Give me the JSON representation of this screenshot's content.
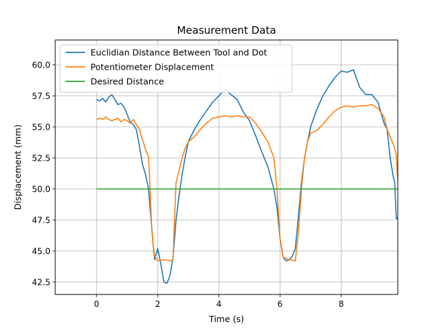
{
  "chart_data": {
    "type": "line",
    "title": "Measurement Data",
    "xlabel": "Time (s)",
    "ylabel": "Displacement (mm)",
    "xlim": [
      -1.35,
      9.85
    ],
    "ylim": [
      41.5,
      62.0
    ],
    "xticks": [
      0,
      2,
      4,
      6,
      8
    ],
    "yticks": [
      42.5,
      45.0,
      47.5,
      50.0,
      52.5,
      55.0,
      57.5,
      60.0
    ],
    "grid": true,
    "legend": "upper-left",
    "series": [
      {
        "name": "Euclidian Distance Between Tool and Dot",
        "color": "#1f77b4",
        "x": [
          0,
          0.1,
          0.2,
          0.3,
          0.4,
          0.5,
          0.6,
          0.7,
          0.8,
          0.9,
          1.0,
          1.1,
          1.2,
          1.3,
          1.4,
          1.5,
          1.6,
          1.7,
          1.75,
          1.8,
          1.85,
          1.9,
          2.0,
          2.1,
          2.2,
          2.3,
          2.4,
          2.5,
          2.6,
          2.7,
          2.8,
          2.9,
          3.0,
          3.2,
          3.4,
          3.6,
          3.8,
          4.0,
          4.2,
          4.4,
          4.6,
          4.8,
          5.0,
          5.2,
          5.4,
          5.6,
          5.8,
          5.9,
          6.0,
          6.1,
          6.2,
          6.3,
          6.4,
          6.5,
          6.6,
          6.7,
          6.8,
          6.9,
          7.0,
          7.2,
          7.4,
          7.6,
          7.8,
          8.0,
          8.2,
          8.4,
          8.6,
          8.8,
          9.0,
          9.2,
          9.4,
          9.5,
          9.6,
          9.7,
          9.75,
          9.8,
          9.85
        ],
        "y": [
          57.2,
          57.1,
          57.3,
          57.0,
          57.4,
          57.6,
          57.2,
          56.8,
          56.9,
          56.6,
          56.0,
          55.4,
          55.2,
          54.8,
          53.5,
          52.0,
          51.2,
          50.0,
          48.5,
          47.0,
          45.5,
          44.3,
          45.2,
          44.0,
          42.5,
          42.4,
          43.0,
          44.5,
          47.5,
          49.5,
          51.2,
          52.6,
          53.8,
          54.8,
          55.6,
          56.3,
          57.0,
          57.5,
          58.0,
          57.6,
          57.2,
          56.2,
          55.5,
          54.3,
          53.0,
          51.8,
          50.0,
          48.5,
          46.0,
          44.5,
          44.2,
          44.3,
          44.6,
          45.2,
          47.8,
          50.5,
          52.5,
          53.8,
          55.0,
          56.4,
          57.5,
          58.3,
          59.0,
          59.5,
          59.4,
          59.6,
          58.2,
          57.6,
          57.6,
          57.0,
          55.3,
          54.8,
          52.5,
          51.0,
          50.5,
          47.6,
          47.7
        ]
      },
      {
        "name": "Potentiometer Displacement",
        "color": "#ff7f0e",
        "x": [
          0,
          0.1,
          0.2,
          0.3,
          0.4,
          0.5,
          0.6,
          0.7,
          0.8,
          0.9,
          1.0,
          1.1,
          1.2,
          1.3,
          1.4,
          1.5,
          1.6,
          1.7,
          1.75,
          1.8,
          1.85,
          1.9,
          2.0,
          2.2,
          2.4,
          2.5,
          2.55,
          2.6,
          2.7,
          2.8,
          2.9,
          3.0,
          3.2,
          3.4,
          3.6,
          3.8,
          4.0,
          4.2,
          4.4,
          4.6,
          4.8,
          5.0,
          5.2,
          5.4,
          5.6,
          5.8,
          5.9,
          6.0,
          6.1,
          6.3,
          6.5,
          6.6,
          6.7,
          6.8,
          6.9,
          7.0,
          7.2,
          7.4,
          7.6,
          7.8,
          8.0,
          8.2,
          8.4,
          8.6,
          8.8,
          9.0,
          9.2,
          9.4,
          9.5,
          9.6,
          9.7,
          9.8,
          9.85
        ],
        "y": [
          55.6,
          55.7,
          55.6,
          55.8,
          55.6,
          55.5,
          55.6,
          55.7,
          55.4,
          55.6,
          55.5,
          55.3,
          55.6,
          55.2,
          54.8,
          54.0,
          53.2,
          52.6,
          50.0,
          47.0,
          45.5,
          44.6,
          44.2,
          44.3,
          44.2,
          44.3,
          47.5,
          50.5,
          51.5,
          52.5,
          53.3,
          53.8,
          54.2,
          54.8,
          55.3,
          55.7,
          55.8,
          55.9,
          55.8,
          55.9,
          55.8,
          55.8,
          55.3,
          54.6,
          53.8,
          52.5,
          50.0,
          46.0,
          44.5,
          44.3,
          44.2,
          46.5,
          50.0,
          52.5,
          53.8,
          54.5,
          54.7,
          55.2,
          55.8,
          56.3,
          56.6,
          56.7,
          56.6,
          56.7,
          56.7,
          56.8,
          56.5,
          55.8,
          54.8,
          54.2,
          53.6,
          52.8,
          50.6
        ]
      },
      {
        "name": "Desired Distance",
        "color": "#2ca02c",
        "x": [
          0,
          9.85
        ],
        "y": [
          50.0,
          50.0
        ]
      }
    ]
  }
}
